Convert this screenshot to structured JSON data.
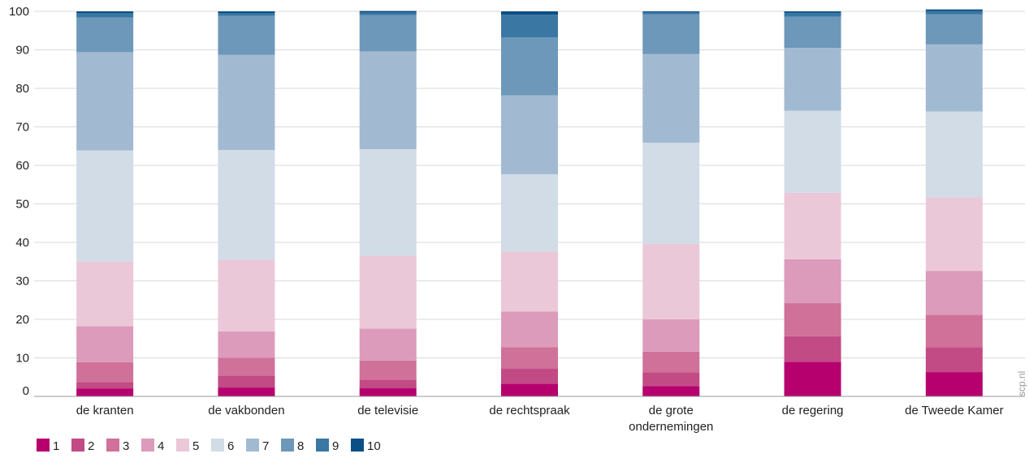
{
  "chart_data": {
    "type": "bar",
    "stacked": true,
    "title": "",
    "xlabel": "",
    "ylabel": "",
    "ylim": [
      0,
      100
    ],
    "yticks": [
      0,
      10,
      20,
      30,
      40,
      50,
      60,
      70,
      80,
      90,
      100
    ],
    "grid": true,
    "legend_position": "bottom-left",
    "categories": [
      [
        "de kranten"
      ],
      [
        "de vakbonden"
      ],
      [
        "de televisie"
      ],
      [
        "de rechtspraak"
      ],
      [
        "de grote",
        "ondernemingen"
      ],
      [
        "de regering"
      ],
      [
        "de Tweede Kamer"
      ]
    ],
    "series": [
      {
        "name": "1",
        "color": "#b5006e",
        "values": [
          2.0,
          2.3,
          2.1,
          3.3,
          2.7,
          9.0,
          6.3
        ]
      },
      {
        "name": "2",
        "color": "#c24a85",
        "values": [
          1.7,
          3.1,
          2.2,
          4.0,
          3.5,
          6.6,
          6.5
        ]
      },
      {
        "name": "3",
        "color": "#cf7199",
        "values": [
          5.2,
          4.6,
          5.0,
          5.5,
          5.4,
          8.6,
          8.4
        ]
      },
      {
        "name": "4",
        "color": "#dc9bbb",
        "values": [
          9.3,
          6.9,
          8.3,
          9.2,
          8.4,
          11.4,
          11.4
        ]
      },
      {
        "name": "5",
        "color": "#ebc8d8",
        "values": [
          16.9,
          18.6,
          18.9,
          15.6,
          19.6,
          17.3,
          19.1
        ]
      },
      {
        "name": "6",
        "color": "#d1dce7",
        "values": [
          28.8,
          28.5,
          27.7,
          20.1,
          26.3,
          21.3,
          22.3
        ]
      },
      {
        "name": "7",
        "color": "#a2bad1",
        "values": [
          25.5,
          24.7,
          25.4,
          20.5,
          23.0,
          16.3,
          17.4
        ]
      },
      {
        "name": "8",
        "color": "#6d98b9",
        "values": [
          9.0,
          10.1,
          9.4,
          15.0,
          10.3,
          8.1,
          7.8
        ]
      },
      {
        "name": "9",
        "color": "#3a77a3",
        "values": [
          1.1,
          0.7,
          0.7,
          5.9,
          0.6,
          1.0,
          0.9
        ]
      },
      {
        "name": "10",
        "color": "#0b4f86",
        "values": [
          0.5,
          0.5,
          0.4,
          0.9,
          0.2,
          0.4,
          0.4
        ]
      }
    ],
    "source": "scp.nl"
  }
}
